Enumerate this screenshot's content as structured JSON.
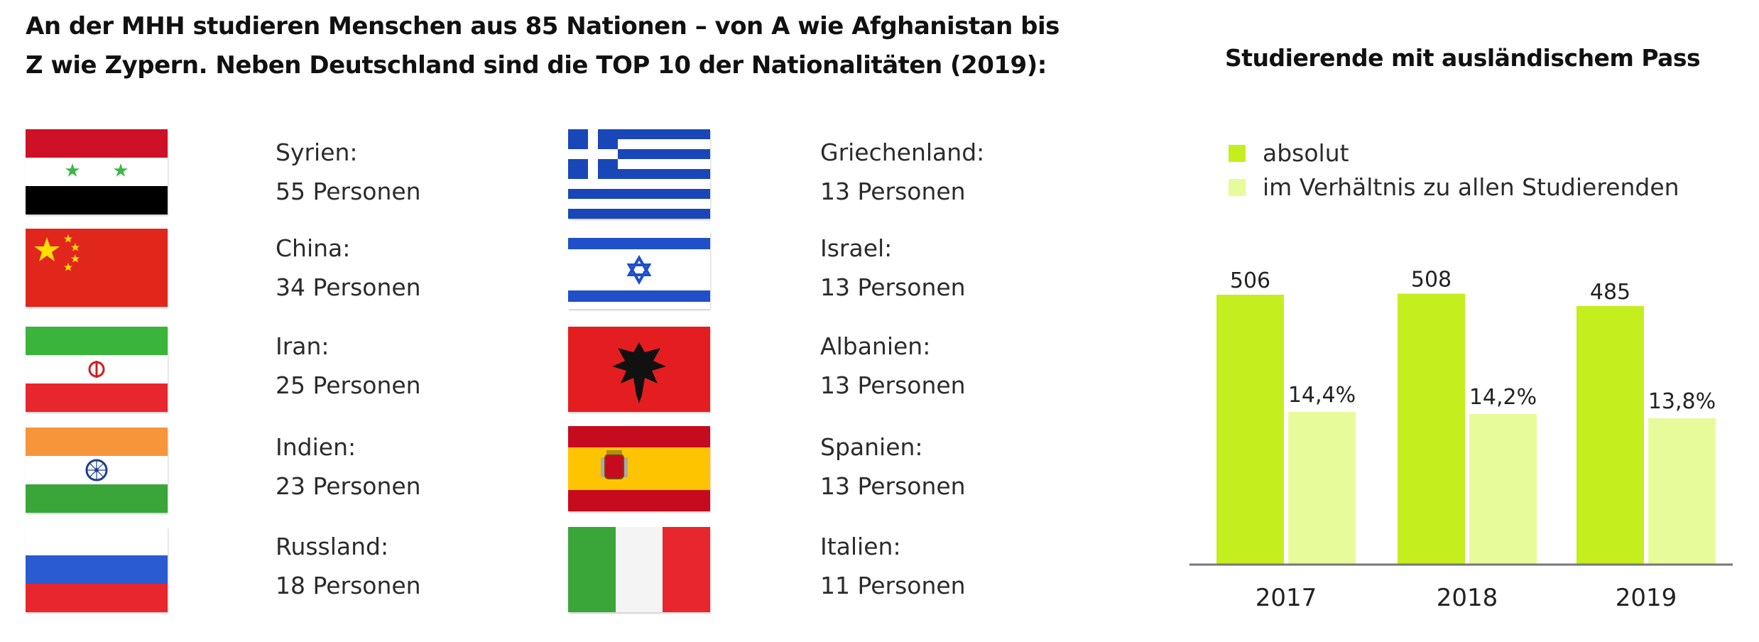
{
  "headline": {
    "line1": "An der MHH studieren Menschen aus 85 Nationen – von A wie Afghanistan bis",
    "line2": "Z wie Zypern. Neben Deutschland sind die TOP 10 der Nationalitäten (2019):"
  },
  "nations": [
    {
      "name": "Syrien:",
      "count": "55 Personen",
      "flag": "syria-flag-icon"
    },
    {
      "name": "China:",
      "count": "34 Personen",
      "flag": "china-flag-icon"
    },
    {
      "name": "Iran:",
      "count": "25 Personen",
      "flag": "iran-flag-icon"
    },
    {
      "name": "Indien:",
      "count": "23 Personen",
      "flag": "india-flag-icon"
    },
    {
      "name": "Russland:",
      "count": "18 Personen",
      "flag": "russia-flag-icon"
    },
    {
      "name": "Griechenland:",
      "count": "13 Personen",
      "flag": "greece-flag-icon"
    },
    {
      "name": "Israel:",
      "count": "13 Personen",
      "flag": "israel-flag-icon"
    },
    {
      "name": "Albanien:",
      "count": "13 Personen",
      "flag": "albania-flag-icon"
    },
    {
      "name": "Spanien:",
      "count": "13 Personen",
      "flag": "spain-flag-icon"
    },
    {
      "name": "Italien:",
      "count": "11 Personen",
      "flag": "italy-flag-icon"
    }
  ],
  "chart_data": {
    "type": "bar",
    "title": "Studierende mit ausländischem Pass",
    "categories": [
      "2017",
      "2018",
      "2019"
    ],
    "series": [
      {
        "name": "absolut",
        "values": [
          506,
          508,
          485
        ],
        "labels": [
          "506",
          "508",
          "485"
        ],
        "color": "#c5ee1f"
      },
      {
        "name": "im Verhältnis zu allen Studierenden",
        "values": [
          14.4,
          14.2,
          13.8
        ],
        "labels": [
          "14,4%",
          "14,2%",
          "13,8%"
        ],
        "color": "#e8fb9a"
      }
    ],
    "legend": "top-left",
    "grid": false
  },
  "colors": {
    "accent_green": "#c5ee1f",
    "light_green": "#e8fb9a",
    "axis": "#777777"
  }
}
